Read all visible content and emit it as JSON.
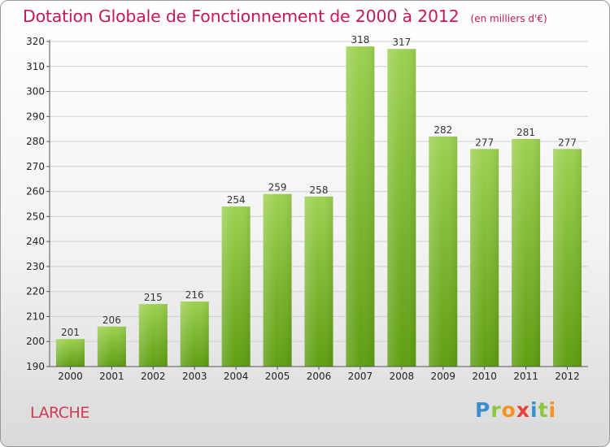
{
  "header": {
    "title": "Dotation Globale de Fonctionnement de 2000 à 2012",
    "unit": "(en milliers d'€)"
  },
  "footer": {
    "commune": "LARCHE",
    "logo_text": "Proxiti",
    "logo_icon": "proxiti-logo"
  },
  "colors": {
    "title": "#c8175d",
    "bar_top": "#9dd151",
    "bar_bottom": "#5f9e12",
    "grid": "#d0d0d0",
    "axis_text": "#222222"
  },
  "chart_data": {
    "type": "bar",
    "title": "Dotation Globale de Fonctionnement de 2000 à 2012",
    "subtitle": "(en milliers d'€)",
    "xlabel": "",
    "ylabel": "",
    "categories": [
      "2000",
      "2001",
      "2002",
      "2003",
      "2004",
      "2005",
      "2006",
      "2007",
      "2008",
      "2009",
      "2010",
      "2011",
      "2012"
    ],
    "values": [
      201,
      206,
      215,
      216,
      254,
      259,
      258,
      318,
      317,
      282,
      277,
      281,
      277
    ],
    "ylim": [
      190,
      320
    ],
    "yticks": [
      190,
      200,
      210,
      220,
      230,
      240,
      250,
      260,
      270,
      280,
      290,
      300,
      310,
      320
    ],
    "grid": true,
    "data_labels": true
  }
}
